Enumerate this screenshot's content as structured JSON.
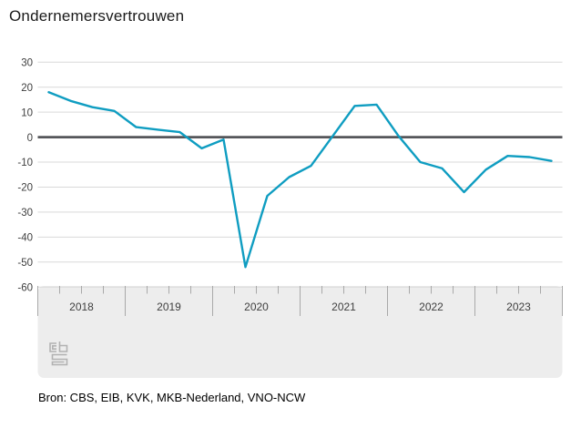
{
  "title": "Ondernemersvertrouwen",
  "source": "Bron: CBS, EIB, KVK, MKB-Nederland, VNO-NCW",
  "logo_name": "cbs-logo",
  "chart_data": {
    "type": "line",
    "title": "Ondernemersvertrouwen",
    "xlabel": "",
    "ylabel": "",
    "ylim": [
      -60,
      30
    ],
    "grid": true,
    "legend_position": "none",
    "y_ticks": [
      30,
      20,
      10,
      0,
      -10,
      -20,
      -30,
      -40,
      -50,
      -60
    ],
    "years": [
      "2018",
      "2019",
      "2020",
      "2021",
      "2022",
      "2023"
    ],
    "quarters_per_year": 4,
    "categories": [
      "2018 Q1",
      "2018 Q2",
      "2018 Q3",
      "2018 Q4",
      "2019 Q1",
      "2019 Q2",
      "2019 Q3",
      "2019 Q4",
      "2020 Q1",
      "2020 Q2",
      "2020 Q3",
      "2020 Q4",
      "2021 Q1",
      "2021 Q2",
      "2021 Q3",
      "2021 Q4",
      "2022 Q1",
      "2022 Q2",
      "2022 Q3",
      "2022 Q4",
      "2023 Q1",
      "2023 Q2",
      "2023 Q3",
      "2023 Q4"
    ],
    "series": [
      {
        "name": "Ondernemersvertrouwen",
        "values": [
          18,
          14.5,
          12,
          10.5,
          4,
          3,
          2,
          -4.5,
          -1,
          -52,
          -23.5,
          -16,
          -11.5,
          0.5,
          12.5,
          13,
          0.5,
          -10,
          -12.5,
          -22,
          -13,
          -7.5,
          -8,
          -9.5
        ]
      }
    ],
    "colors": {
      "line": "#0f9dc1",
      "grid": "#d9d9d9",
      "zero_line": "#55565a",
      "axis_band": "#ededed",
      "tick": "#a9a9a9",
      "axis_text": "#3f3f3f",
      "logo": "#b2b2b2"
    }
  }
}
